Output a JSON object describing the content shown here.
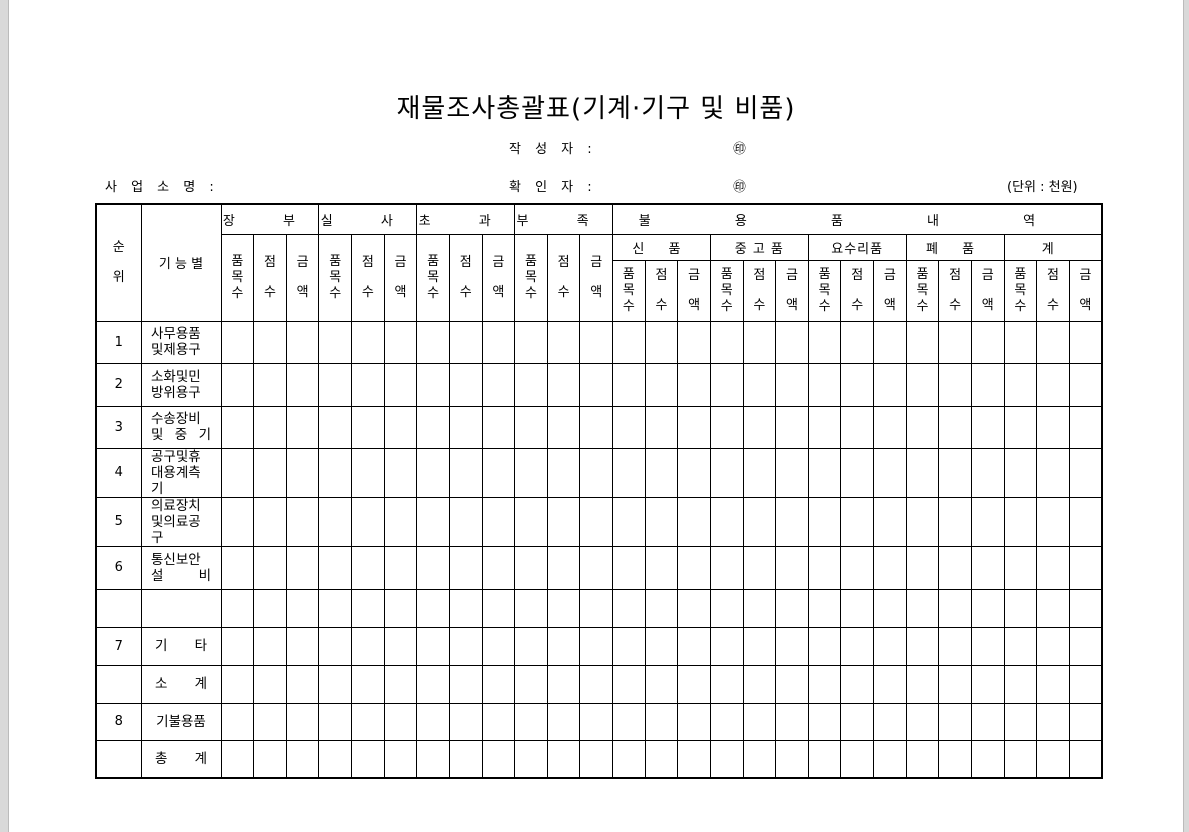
{
  "title": "재물조사총괄표(기계·기구 및 비품)",
  "writer_label": "작 성 자 :",
  "confirmer_label": "확 인 자 :",
  "seal": "㊞",
  "business_label": "사 업 소 명 :",
  "unit": "(단위 : 천원)",
  "table": {
    "order_header": "순위",
    "function_header": "기 능 별",
    "groups": [
      "장 부",
      "실 사",
      "초 과",
      "부 족"
    ],
    "disposal_header": "불 용 품 내 역",
    "disposal_groups": [
      "신 품",
      "중 고 품",
      "요수리품",
      "폐 품",
      "계"
    ],
    "subcols": [
      "품목수",
      "점수",
      "금액"
    ],
    "rows": [
      {
        "no": "1",
        "name": "사무용품및제용구"
      },
      {
        "no": "2",
        "name": "소화및민방위용구"
      },
      {
        "no": "3",
        "name": "수송장비및 중 기"
      },
      {
        "no": "4",
        "name": "공구및휴대용계측기"
      },
      {
        "no": "5",
        "name": "의료장치및의료공구"
      },
      {
        "no": "6",
        "name": "통신보안설 비"
      },
      {
        "no": "",
        "name": ""
      },
      {
        "no": "7",
        "name": "기 타"
      },
      {
        "no": "",
        "name": "소 계"
      },
      {
        "no": "8",
        "name": "기불용품"
      },
      {
        "no": "",
        "name": "총 계"
      }
    ]
  }
}
